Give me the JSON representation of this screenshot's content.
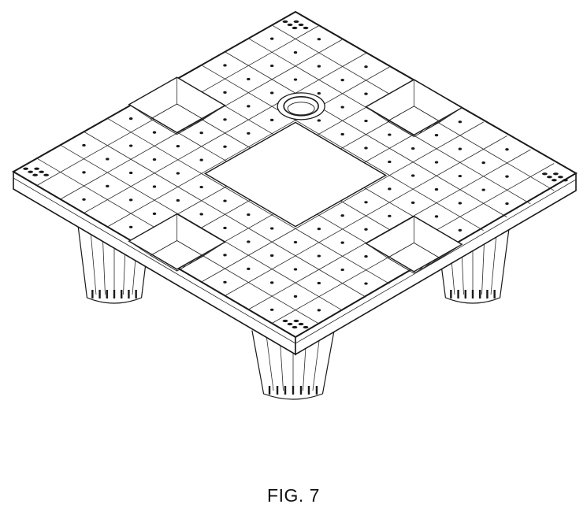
{
  "figure": {
    "caption": "FIG. 7",
    "line_color": "#1a1a1a",
    "background": "#ffffff"
  }
}
